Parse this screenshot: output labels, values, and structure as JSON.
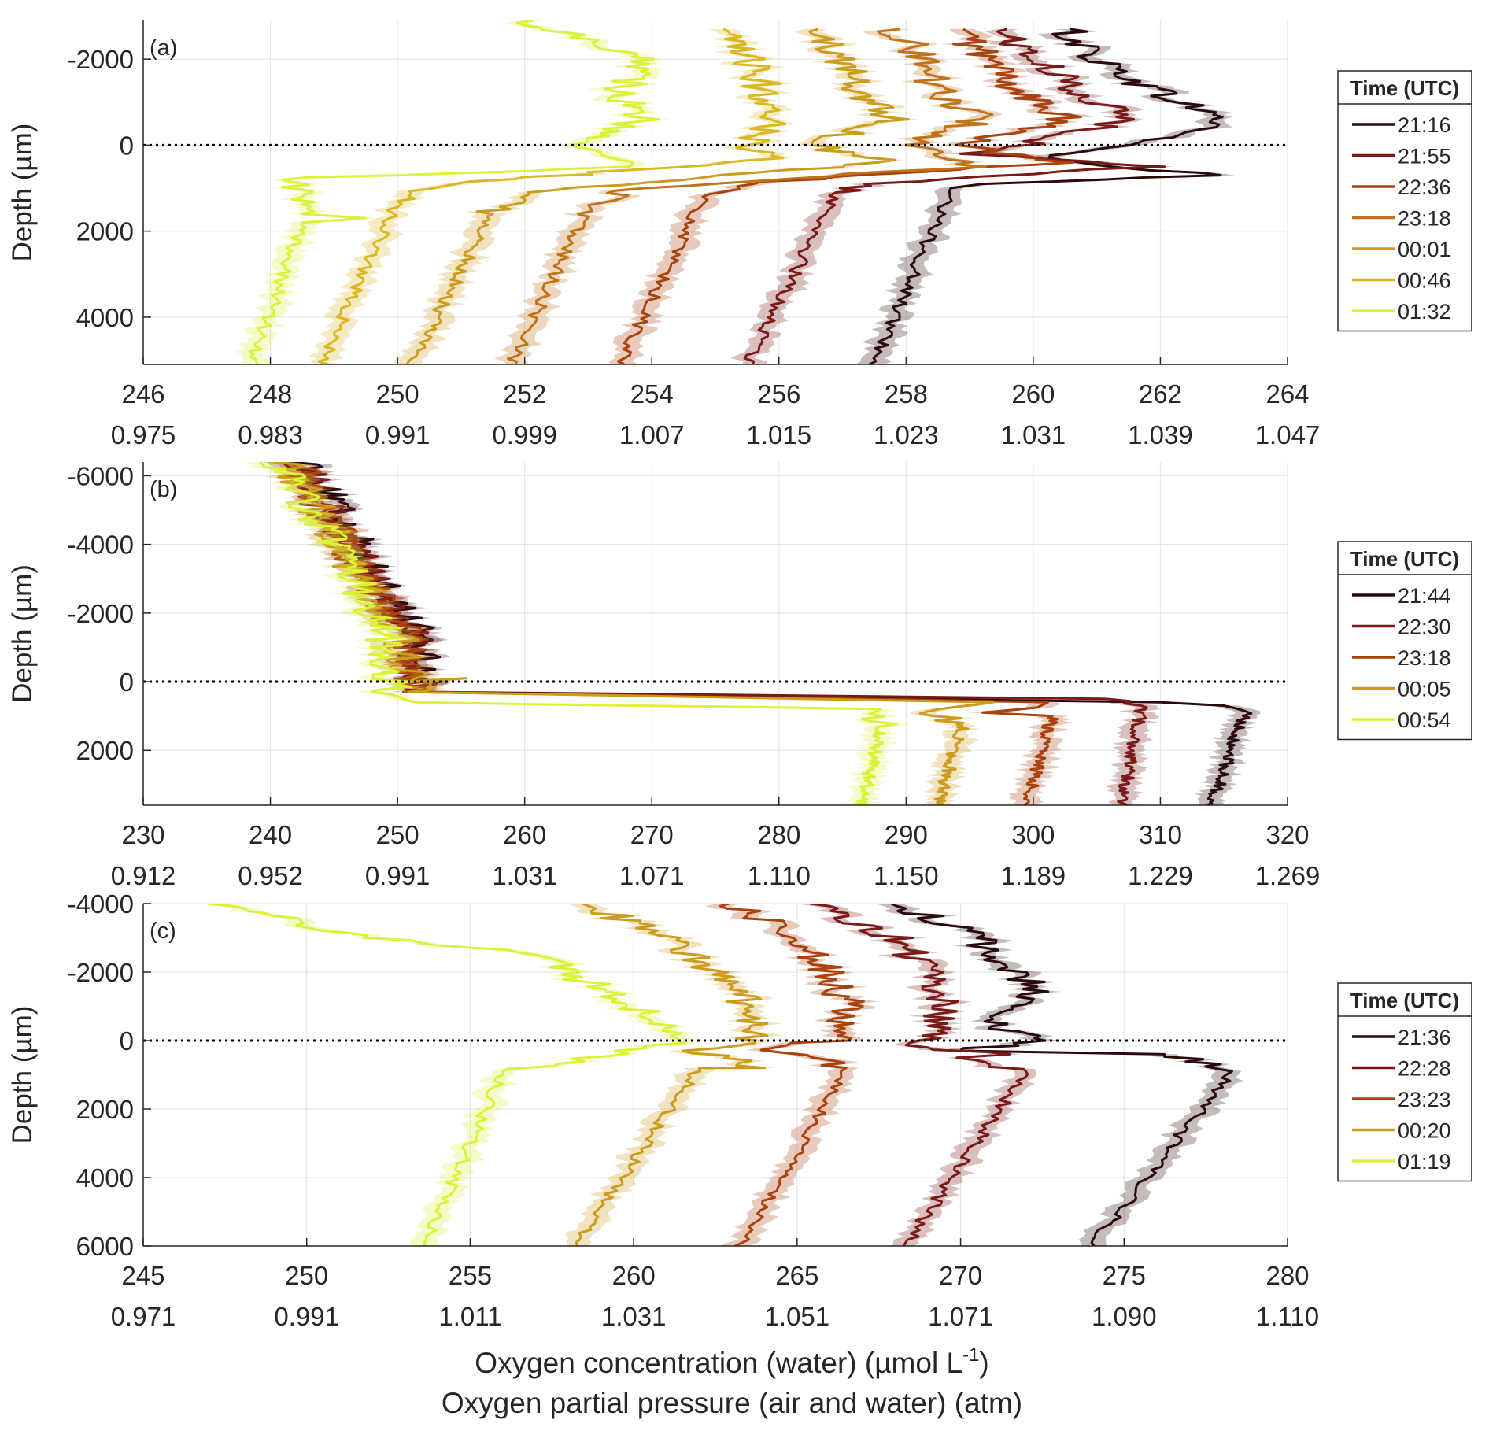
{
  "colors": {
    "t1": "#2a0a0c",
    "t2": "#7a1a18",
    "t3": "#a8420e",
    "t4": "#c0741a",
    "t5": "#cc9c1e",
    "t6": "#dab824",
    "t7": "#dcf23a",
    "axis": "#262626",
    "grid": "#e6e6e6",
    "surface": "#000000"
  },
  "xlabels": {
    "line1": "Oxygen concentration (water) (µmol L",
    "sup": "-1",
    "line1_end": ")",
    "line2": "Oxygen partial pressure (air and water) (atm)"
  },
  "chart_data": [
    {
      "id": "a",
      "panel_label": "(a)",
      "type": "line",
      "ylabel": "Depth (µm)",
      "xlim": [
        246,
        264
      ],
      "ylim": [
        -2900,
        5100
      ],
      "y_reversed": true,
      "xticks": [
        246,
        248,
        250,
        252,
        254,
        256,
        258,
        260,
        262,
        264
      ],
      "xtick_labels": [
        "246",
        "248",
        "250",
        "252",
        "254",
        "256",
        "258",
        "260",
        "262",
        "264"
      ],
      "xticks2_labels": [
        "0.975",
        "0.983",
        "0.991",
        "0.999",
        "1.007",
        "1.015",
        "1.023",
        "1.031",
        "1.039",
        "1.047"
      ],
      "yticks": [
        -2000,
        0,
        2000,
        4000
      ],
      "ytick_labels": [
        "-2000",
        "0",
        "2000",
        "4000"
      ],
      "surface_depth": 0,
      "legend": {
        "title": "Time (UTC)",
        "entries": [
          "21:16",
          "21:55",
          "22:36",
          "23:18",
          "00:01",
          "00:46",
          "01:32"
        ]
      },
      "series": [
        {
          "name": "21:16",
          "color_key": "t1",
          "water_top": 258.7,
          "water_bottom": 257.5,
          "air": [
            [
              260.5,
              -2700
            ],
            [
              261.0,
              -2000
            ],
            [
              262.0,
              -1200
            ],
            [
              263.0,
              -600
            ],
            [
              262.5,
              -300
            ],
            [
              261.5,
              0
            ],
            [
              260.0,
              300
            ],
            [
              262.8,
              700
            ],
            [
              259.2,
              900
            ],
            [
              258.7,
              1000
            ]
          ]
        },
        {
          "name": "21:55",
          "color_key": "t2",
          "water_top": 256.9,
          "water_bottom": 255.5,
          "air": [
            [
              259.5,
              -2700
            ],
            [
              260.0,
              -2000
            ],
            [
              260.8,
              -1200
            ],
            [
              261.5,
              -600
            ],
            [
              260.5,
              -200
            ],
            [
              259.0,
              200
            ],
            [
              261.8,
              500
            ],
            [
              257.5,
              900
            ],
            [
              256.9,
              1100
            ]
          ]
        },
        {
          "name": "22:36",
          "color_key": "t3",
          "water_top": 254.8,
          "water_bottom": 253.5,
          "air": [
            [
              258.8,
              -2700
            ],
            [
              259.3,
              -2000
            ],
            [
              259.8,
              -1200
            ],
            [
              260.5,
              -600
            ],
            [
              258.8,
              0
            ],
            [
              260.5,
              400
            ],
            [
              255.5,
              900
            ],
            [
              254.8,
              1200
            ]
          ]
        },
        {
          "name": "23:18",
          "color_key": "t4",
          "water_top": 253.0,
          "water_bottom": 251.8,
          "air": [
            [
              257.8,
              -2700
            ],
            [
              258.3,
              -2000
            ],
            [
              258.5,
              -1200
            ],
            [
              259.2,
              -600
            ],
            [
              258.0,
              0
            ],
            [
              259.0,
              500
            ],
            [
              253.8,
              1000
            ],
            [
              253.0,
              1400
            ]
          ]
        },
        {
          "name": "00:01",
          "color_key": "t5",
          "water_top": 251.5,
          "water_bottom": 250.2,
          "air": [
            [
              256.5,
              -2700
            ],
            [
              257.0,
              -2000
            ],
            [
              257.3,
              -1200
            ],
            [
              257.8,
              -600
            ],
            [
              256.5,
              0
            ],
            [
              257.8,
              400
            ],
            [
              252.0,
              1100
            ],
            [
              251.5,
              1600
            ]
          ]
        },
        {
          "name": "00:46",
          "color_key": "t6",
          "water_top": 250.0,
          "water_bottom": 248.8,
          "air": [
            [
              255.0,
              -2700
            ],
            [
              255.5,
              -2000
            ],
            [
              255.8,
              -1200
            ],
            [
              256.0,
              -600
            ],
            [
              255.5,
              0
            ],
            [
              256.2,
              300
            ],
            [
              250.8,
              900
            ],
            [
              250.0,
              1300
            ]
          ]
        },
        {
          "name": "01:32",
          "color_key": "t7",
          "water_top": 248.5,
          "water_bottom": 247.7,
          "air": [
            [
              252.0,
              -2900
            ],
            [
              254.0,
              -2000
            ],
            [
              253.5,
              -1200
            ],
            [
              253.8,
              -600
            ],
            [
              253.0,
              0
            ],
            [
              253.5,
              500
            ],
            [
              250.0,
              700
            ],
            [
              248.3,
              750
            ],
            [
              248.5,
              1600
            ],
            [
              249.5,
              1700
            ],
            [
              248.5,
              1800
            ]
          ]
        }
      ]
    },
    {
      "id": "b",
      "panel_label": "(b)",
      "type": "line",
      "ylabel": "Depth (µm)",
      "xlim": [
        230,
        320
      ],
      "ylim": [
        -6400,
        3600
      ],
      "y_reversed": true,
      "xticks": [
        230,
        240,
        250,
        260,
        270,
        280,
        290,
        300,
        310,
        320
      ],
      "xtick_labels": [
        "230",
        "240",
        "250",
        "260",
        "270",
        "280",
        "290",
        "300",
        "310",
        "320"
      ],
      "xticks2_labels": [
        "0.912",
        "0.952",
        "0.991",
        "1.031",
        "1.071",
        "1.110",
        "1.150",
        "1.189",
        "1.229",
        "1.269"
      ],
      "yticks": [
        -6000,
        -4000,
        -2000,
        0,
        2000
      ],
      "ytick_labels": [
        "-6000",
        "-4000",
        "-2000",
        "0",
        "2000"
      ],
      "surface_depth": 0,
      "legend": {
        "title": "Time (UTC)",
        "entries": [
          "21:44",
          "22:30",
          "23:18",
          "00:05",
          "00:54"
        ]
      },
      "series": [
        {
          "name": "21:44",
          "color_key": "t1",
          "water_top": 316.5,
          "water_bottom": 314.0,
          "air": [
            [
              243.0,
              -6400
            ],
            [
              245.5,
              -4800
            ],
            [
              248.5,
              -3000
            ],
            [
              251.5,
              -1500
            ],
            [
              252.0,
              0
            ],
            [
              252.5,
              300
            ],
            [
              310.0,
              600
            ],
            [
              314.0,
              700
            ],
            [
              316.5,
              1000
            ]
          ]
        },
        {
          "name": "22:30",
          "color_key": "t2",
          "water_top": 308.5,
          "water_bottom": 307.0,
          "air": [
            [
              242.5,
              -6400
            ],
            [
              245.0,
              -4800
            ],
            [
              248.0,
              -3000
            ],
            [
              251.0,
              -1500
            ],
            [
              251.5,
              0
            ],
            [
              252.0,
              300
            ],
            [
              307.0,
              500
            ],
            [
              308.5,
              700
            ]
          ]
        },
        {
          "name": "23:18",
          "color_key": "t3",
          "water_top": 301.5,
          "water_bottom": 299.5,
          "air": [
            [
              242.0,
              -6400
            ],
            [
              244.5,
              -4800
            ],
            [
              247.5,
              -3000
            ],
            [
              250.5,
              -1500
            ],
            [
              251.0,
              0
            ],
            [
              251.5,
              300
            ],
            [
              302.0,
              600
            ],
            [
              296.0,
              900
            ],
            [
              301.5,
              1000
            ]
          ]
        },
        {
          "name": "00:05",
          "color_key": "t5",
          "water_top": 294.5,
          "water_bottom": 292.5,
          "air": [
            [
              241.5,
              -6400
            ],
            [
              244.0,
              -4800
            ],
            [
              247.0,
              -3000
            ],
            [
              250.0,
              -1500
            ],
            [
              251.0,
              0
            ],
            [
              254.0,
              -100
            ],
            [
              251.0,
              300
            ],
            [
              295.5,
              600
            ],
            [
              292.0,
              1000
            ],
            [
              294.5,
              1200
            ]
          ]
        },
        {
          "name": "00:54",
          "color_key": "t7",
          "water_top": 288.0,
          "water_bottom": 286.5,
          "air": [
            [
              240.5,
              -6400
            ],
            [
              243.5,
              -4800
            ],
            [
              246.5,
              -3000
            ],
            [
              249.0,
              -1500
            ],
            [
              249.5,
              0
            ],
            [
              249.5,
              300
            ],
            [
              251.0,
              600
            ],
            [
              287.5,
              800
            ],
            [
              288.0,
              1300
            ]
          ]
        }
      ]
    },
    {
      "id": "c",
      "panel_label": "(c)",
      "type": "line",
      "ylabel": "Depth (µm)",
      "xlim": [
        245,
        280
      ],
      "ylim": [
        -4000,
        6000
      ],
      "y_reversed": true,
      "xticks": [
        245,
        250,
        255,
        260,
        265,
        270,
        275,
        280
      ],
      "xtick_labels": [
        "245",
        "250",
        "255",
        "260",
        "265",
        "270",
        "275",
        "280"
      ],
      "xticks2_labels": [
        "0.971",
        "0.991",
        "1.011",
        "1.031",
        "1.051",
        "1.071",
        "1.090",
        "1.110"
      ],
      "yticks": [
        -4000,
        -2000,
        0,
        2000,
        4000,
        6000
      ],
      "ytick_labels": [
        "-4000",
        "-2000",
        "0",
        "2000",
        "4000",
        "6000"
      ],
      "surface_depth": 0,
      "legend": {
        "title": "Time (UTC)",
        "entries": [
          "21:36",
          "22:28",
          "23:23",
          "00:20",
          "01:19"
        ]
      },
      "series": [
        {
          "name": "21:36",
          "color_key": "t1",
          "water_top": 278.3,
          "water_bottom": 274.0,
          "air": [
            [
              268.0,
              -4000
            ],
            [
              270.5,
              -3000
            ],
            [
              271.5,
              -2000
            ],
            [
              272.5,
              -1500
            ],
            [
              271.0,
              -700
            ],
            [
              271.5,
              -200
            ],
            [
              272.5,
              0
            ],
            [
              270.0,
              300
            ],
            [
              276.5,
              400
            ],
            [
              278.3,
              900
            ]
          ]
        },
        {
          "name": "22:28",
          "color_key": "t2",
          "water_top": 272.0,
          "water_bottom": 268.3,
          "air": [
            [
              265.5,
              -4000
            ],
            [
              268.0,
              -3000
            ],
            [
              269.0,
              -2000
            ],
            [
              269.5,
              -1000
            ],
            [
              269.0,
              0
            ],
            [
              268.5,
              200
            ],
            [
              271.5,
              400
            ],
            [
              269.5,
              500
            ],
            [
              272.0,
              900
            ]
          ]
        },
        {
          "name": "23:23",
          "color_key": "t3",
          "water_top": 266.5,
          "water_bottom": 263.3,
          "air": [
            [
              263.0,
              -4000
            ],
            [
              265.0,
              -3000
            ],
            [
              266.0,
              -2000
            ],
            [
              266.5,
              -1000
            ],
            [
              266.0,
              0
            ],
            [
              264.0,
              200
            ],
            [
              266.5,
              800
            ]
          ]
        },
        {
          "name": "00:20",
          "color_key": "t5",
          "water_top": 262.0,
          "water_bottom": 258.2,
          "air": [
            [
              258.5,
              -4000
            ],
            [
              261.0,
              -3000
            ],
            [
              262.5,
              -2000
            ],
            [
              263.5,
              -1000
            ],
            [
              263.5,
              0
            ],
            [
              262.0,
              300
            ],
            [
              264.0,
              800
            ],
            [
              262.0,
              800
            ]
          ]
        },
        {
          "name": "01:19",
          "color_key": "t7",
          "water_top": 256.0,
          "water_bottom": 253.6,
          "air": [
            [
              247.0,
              -4000
            ],
            [
              252.0,
              -3000
            ],
            [
              257.0,
              -2500
            ],
            [
              259.0,
              -1500
            ],
            [
              261.0,
              -500
            ],
            [
              261.5,
              0
            ],
            [
              260.0,
              300
            ],
            [
              256.0,
              900
            ]
          ]
        }
      ]
    }
  ]
}
